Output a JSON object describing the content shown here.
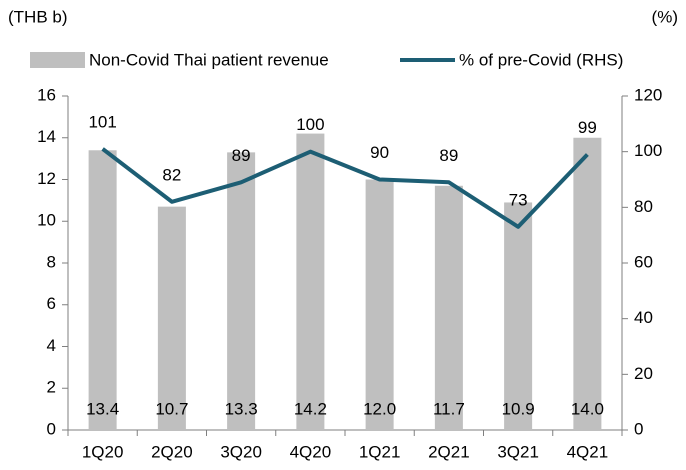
{
  "chart_data": {
    "type": "bar-line",
    "ylabel": "(THB b)",
    "y2label": "(%)",
    "categories": [
      "1Q20",
      "2Q20",
      "3Q20",
      "4Q20",
      "1Q21",
      "2Q21",
      "3Q21",
      "4Q21"
    ],
    "series": [
      {
        "name": "Non-Covid Thai patient revenue",
        "type": "bar",
        "color": "#bfbfbf",
        "values": [
          13.4,
          10.7,
          13.3,
          14.2,
          12.0,
          11.7,
          10.9,
          14.0
        ],
        "value_labels": [
          "13.4",
          "10.7",
          "13.3",
          "14.2",
          "12.0",
          "11.7",
          "10.9",
          "14.0"
        ]
      },
      {
        "name": "% of pre-Covid (RHS)",
        "type": "line",
        "color": "#1d5e74",
        "axis": "y2",
        "values": [
          101,
          82,
          89,
          100,
          90,
          89,
          73,
          99
        ]
      }
    ],
    "ylim": [
      0,
      16
    ],
    "yticks": [
      0,
      2,
      4,
      6,
      8,
      10,
      12,
      14,
      16
    ],
    "y2lim": [
      0,
      120
    ],
    "y2ticks": [
      0,
      20,
      40,
      60,
      80,
      100,
      120
    ],
    "legend": "top"
  }
}
